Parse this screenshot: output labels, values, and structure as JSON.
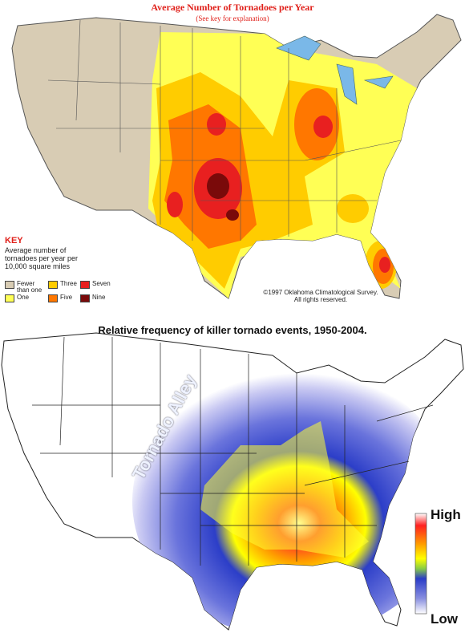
{
  "top_map": {
    "title": "Average Number of Tornadoes per Year",
    "subtitle": "(See key for explanation)",
    "key": {
      "heading": "KEY",
      "description": "Average number of tornadoes per year per 10,000 square miles",
      "items": [
        {
          "label": "Fewer than one",
          "color": "#d8ccb4"
        },
        {
          "label": "One",
          "color": "#ffff55"
        },
        {
          "label": "Three",
          "color": "#ffcc00"
        },
        {
          "label": "Five",
          "color": "#ff7700"
        },
        {
          "label": "Seven",
          "color": "#e82020"
        },
        {
          "label": "Nine",
          "color": "#7a0a0a"
        }
      ]
    },
    "copyright": [
      "©1997 Oklahoma Climatological Survey.",
      "All rights reserved."
    ]
  },
  "bottom_map": {
    "title": "Relative frequency of killer tornado events, 1950-2004.",
    "annotation": "Tornado Alley",
    "scale": {
      "high": "High",
      "low": "Low"
    }
  }
}
